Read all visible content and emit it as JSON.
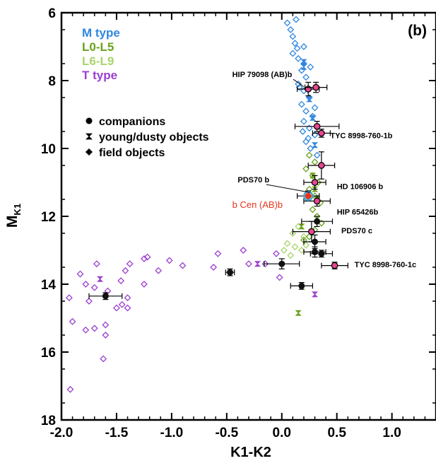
{
  "chart_data": {
    "type": "scatter",
    "panel_label": "(b)",
    "xlabel": "K1-K2",
    "ylabel_main": "M",
    "ylabel_sub": "K1",
    "xlim": [
      -2.0,
      1.4
    ],
    "ylim": [
      18,
      6
    ],
    "y_inverted": true,
    "x_ticks": [
      -2.0,
      -1.5,
      -1.0,
      -0.5,
      0.0,
      0.5,
      1.0
    ],
    "x_tick_labels": [
      "-2.0",
      "-1.5",
      "-1.0",
      "-0.5",
      "0.0",
      "0.5",
      "1.0"
    ],
    "y_ticks": [
      6,
      8,
      10,
      12,
      14,
      16,
      18
    ],
    "y_tick_labels": [
      "6",
      "8",
      "10",
      "12",
      "14",
      "16",
      "18"
    ],
    "grid": false,
    "colors": {
      "M": "#2f86e0",
      "L0L5": "#6aa11a",
      "L6L9": "#a8d46a",
      "T": "#9b3fd0",
      "companion": "#111111",
      "highlight_fill": "#e8458f",
      "bcen": "#e8341c",
      "bcen_ring": "#3aa7d8"
    },
    "legend_types": [
      {
        "key": "M",
        "label": "M type"
      },
      {
        "key": "L0L5",
        "label": "L0-L5"
      },
      {
        "key": "L6L9",
        "label": "L6-L9"
      },
      {
        "key": "T",
        "label": "T type"
      }
    ],
    "legend_symbols": [
      {
        "shape": "circle",
        "label": "companions"
      },
      {
        "shape": "hourglass",
        "label": "young/dusty objects"
      },
      {
        "shape": "diamond",
        "label": "field objects"
      }
    ],
    "field_objects": {
      "M": [
        [
          0.05,
          6.3
        ],
        [
          0.08,
          6.5
        ],
        [
          0.1,
          6.7
        ],
        [
          0.12,
          6.9
        ],
        [
          0.14,
          7.05
        ],
        [
          0.1,
          7.2
        ],
        [
          0.15,
          7.35
        ],
        [
          0.2,
          7.5
        ],
        [
          0.18,
          7.7
        ],
        [
          0.22,
          7.9
        ],
        [
          0.15,
          8.1
        ],
        [
          0.2,
          8.3
        ],
        [
          0.25,
          8.5
        ],
        [
          0.18,
          8.7
        ],
        [
          0.22,
          8.9
        ],
        [
          0.28,
          9.05
        ],
        [
          0.2,
          9.2
        ],
        [
          0.25,
          9.4
        ],
        [
          0.3,
          9.6
        ],
        [
          0.22,
          9.8
        ],
        [
          0.26,
          10.0
        ],
        [
          0.32,
          10.2
        ],
        [
          0.24,
          9.7
        ],
        [
          0.16,
          8.2
        ],
        [
          0.13,
          6.2
        ],
        [
          0.2,
          7.0
        ],
        [
          0.26,
          7.6
        ],
        [
          0.3,
          8.8
        ],
        [
          0.19,
          9.5
        ]
      ],
      "L0L5": [
        [
          0.25,
          10.2
        ],
        [
          0.3,
          10.4
        ],
        [
          0.22,
          10.6
        ],
        [
          0.28,
          10.8
        ],
        [
          0.33,
          11.0
        ],
        [
          0.25,
          11.2
        ],
        [
          0.3,
          11.4
        ],
        [
          0.35,
          11.6
        ],
        [
          0.28,
          11.8
        ],
        [
          0.32,
          12.0
        ],
        [
          0.36,
          12.2
        ],
        [
          0.3,
          12.4
        ],
        [
          0.25,
          12.6
        ],
        [
          0.2,
          12.7
        ]
      ],
      "L6L9": [
        [
          0.15,
          12.3
        ],
        [
          0.1,
          12.5
        ],
        [
          0.2,
          12.6
        ],
        [
          0.05,
          12.8
        ],
        [
          0.12,
          12.9
        ],
        [
          0.02,
          13.0
        ],
        [
          0.18,
          13.0
        ],
        [
          0.08,
          13.15
        ],
        [
          0.22,
          12.85
        ]
      ],
      "T": [
        [
          -0.15,
          13.4
        ],
        [
          -0.05,
          13.1
        ],
        [
          -0.35,
          13.0
        ],
        [
          -0.58,
          13.1
        ],
        [
          -0.62,
          13.5
        ],
        [
          -0.9,
          13.45
        ],
        [
          -1.02,
          13.3
        ],
        [
          -1.22,
          13.2
        ],
        [
          -1.25,
          13.25
        ],
        [
          -1.12,
          13.6
        ],
        [
          -1.25,
          14.0
        ],
        [
          -1.38,
          13.4
        ],
        [
          -1.42,
          13.6
        ],
        [
          -1.46,
          13.9
        ],
        [
          -1.4,
          14.4
        ],
        [
          -1.4,
          14.7
        ],
        [
          -1.45,
          14.6
        ],
        [
          -1.5,
          14.7
        ],
        [
          -1.58,
          14.2
        ],
        [
          -1.6,
          15.2
        ],
        [
          -1.6,
          15.5
        ],
        [
          -1.68,
          13.4
        ],
        [
          -1.7,
          15.3
        ],
        [
          -1.7,
          14.1
        ],
        [
          -1.75,
          14.5
        ],
        [
          -1.78,
          14.0
        ],
        [
          -1.83,
          13.7
        ],
        [
          -1.78,
          15.35
        ],
        [
          -1.93,
          14.4
        ],
        [
          -1.9,
          15.1
        ],
        [
          -1.92,
          17.1
        ],
        [
          -1.62,
          16.2
        ],
        [
          -0.02,
          13.8
        ],
        [
          -0.3,
          13.4
        ]
      ]
    },
    "young_objects": [
      {
        "x": 0.2,
        "y": 7.45,
        "type": "M"
      },
      {
        "x": 0.2,
        "y": 7.6,
        "type": "M"
      },
      {
        "x": 0.25,
        "y": 8.55,
        "type": "M"
      },
      {
        "x": 0.28,
        "y": 9.1,
        "type": "M"
      },
      {
        "x": 0.3,
        "y": 9.9,
        "type": "M"
      },
      {
        "x": 0.28,
        "y": 10.8,
        "type": "L0L5"
      },
      {
        "x": 0.3,
        "y": 11.2,
        "type": "L0L5"
      },
      {
        "x": 0.32,
        "y": 11.5,
        "type": "L0L5"
      },
      {
        "x": 0.18,
        "y": 12.3,
        "type": "L0L5"
      },
      {
        "x": 0.15,
        "y": 14.85,
        "type": "L0L5"
      },
      {
        "x": -0.22,
        "y": 13.4,
        "type": "T"
      },
      {
        "x": 0.3,
        "y": 14.3,
        "type": "T"
      },
      {
        "x": -1.65,
        "y": 13.85,
        "type": "T"
      }
    ],
    "companions": [
      {
        "x": 0.24,
        "y": 8.25,
        "xerr": 0.1,
        "yerr": 0.2,
        "style": "pink"
      },
      {
        "x": 0.31,
        "y": 8.2,
        "xerr": 0.1,
        "yerr": 0.15,
        "style": "pink"
      },
      {
        "x": 0.32,
        "y": 9.35,
        "xerr": 0.2,
        "yerr": 0.15,
        "style": "pink"
      },
      {
        "x": 0.36,
        "y": 9.55,
        "xerr": 0.08,
        "yerr": 0.12,
        "style": "pink"
      },
      {
        "x": 0.36,
        "y": 10.5,
        "xerr": 0.12,
        "yerr": 0.4,
        "style": "pink"
      },
      {
        "x": 0.3,
        "y": 11.0,
        "xerr": 0.1,
        "yerr": 0.2,
        "style": "pink"
      },
      {
        "x": 0.32,
        "y": 11.55,
        "xerr": 0.12,
        "yerr": 0.15,
        "style": "pink"
      },
      {
        "x": 0.27,
        "y": 12.45,
        "xerr": 0.17,
        "yerr": 0.3,
        "style": "pink"
      },
      {
        "x": 0.48,
        "y": 13.45,
        "xerr": 0.12,
        "yerr": 0.1,
        "style": "pink"
      },
      {
        "x": 0.24,
        "y": 11.4,
        "xerr": 0.1,
        "yerr": 0.15,
        "style": "bcen"
      },
      {
        "x": 0.32,
        "y": 12.15,
        "xerr": 0.14,
        "yerr": 0.15,
        "style": "black"
      },
      {
        "x": 0.3,
        "y": 12.75,
        "xerr": 0.1,
        "yerr": 0.2,
        "style": "black"
      },
      {
        "x": 0.3,
        "y": 13.05,
        "xerr": 0.1,
        "yerr": 0.15,
        "style": "black"
      },
      {
        "x": 0.36,
        "y": 13.1,
        "xerr": 0.1,
        "yerr": 0.1,
        "style": "black"
      },
      {
        "x": 0.0,
        "y": 13.4,
        "xerr": 0.16,
        "yerr": 0.15,
        "style": "black"
      },
      {
        "x": -0.47,
        "y": 13.65,
        "xerr": 0.04,
        "yerr": 0.1,
        "style": "black"
      },
      {
        "x": 0.18,
        "y": 14.05,
        "xerr": 0.1,
        "yerr": 0.1,
        "style": "black"
      },
      {
        "x": -1.6,
        "y": 14.35,
        "xerr": 0.15,
        "yerr": 0.1,
        "style": "black"
      }
    ],
    "annotations": [
      {
        "text": "HIP 79098 (AB)b",
        "x": -0.45,
        "y": 7.9,
        "red": false,
        "lx": 0.2,
        "ly": 8.18
      },
      {
        "text": "TYC 8998-760-1b",
        "x": 0.44,
        "y": 9.7,
        "red": false
      },
      {
        "text": "PDS70 b",
        "x": -0.4,
        "y": 11.0,
        "red": false,
        "lx": 0.26,
        "ly": 11.3
      },
      {
        "text": "HD 106906 b",
        "x": 0.5,
        "y": 11.2,
        "red": false
      },
      {
        "text": "b Cen (AB)b",
        "x": -0.45,
        "y": 11.75,
        "red": true
      },
      {
        "text": "HIP 65426b",
        "x": 0.5,
        "y": 11.95,
        "red": false
      },
      {
        "text": "PDS70 c",
        "x": 0.54,
        "y": 12.5,
        "red": false
      },
      {
        "text": "TYC 8998-760-1c",
        "x": 0.66,
        "y": 13.5,
        "red": false
      }
    ]
  }
}
